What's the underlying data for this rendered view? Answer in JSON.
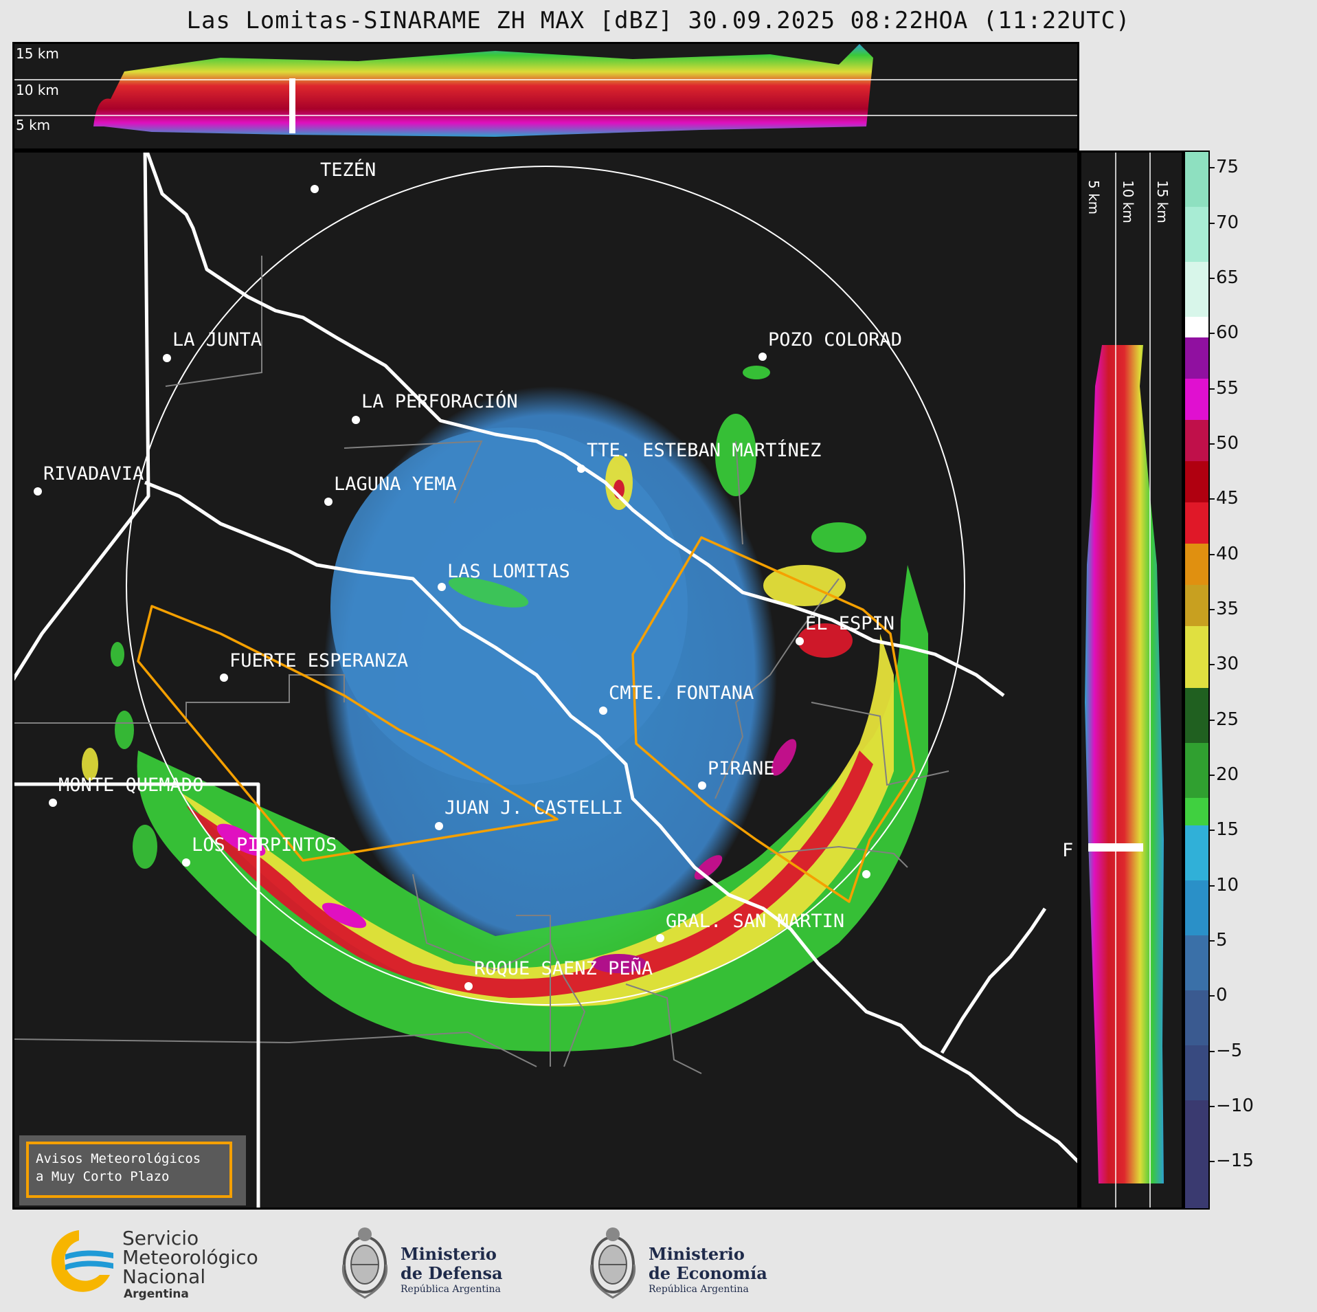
{
  "title": "Las Lomitas-SINARAME ZH MAX [dBZ] 30.09.2025 08:22HOA (11:22UTC)",
  "top_panel": {
    "height_labels": [
      "15 km",
      "10 km",
      "5 km"
    ]
  },
  "side_panel": {
    "height_labels": [
      "5 km",
      "10 km",
      "15 km"
    ]
  },
  "colorbar": {
    "ticks": [
      "75",
      "70",
      "65",
      "60",
      "55",
      "50",
      "45",
      "40",
      "35",
      "30",
      "25",
      "20",
      "15",
      "10",
      "5",
      "0",
      "−5",
      "−10",
      "−15"
    ]
  },
  "cities": [
    {
      "name": "TEZÉN"
    },
    {
      "name": "LA JUNTA"
    },
    {
      "name": "POZO COLORAD"
    },
    {
      "name": "LA PERFORACIÓN"
    },
    {
      "name": "TTE. ESTEBAN MARTÍNEZ"
    },
    {
      "name": "RIVADAVIA"
    },
    {
      "name": "LAGUNA YEMA"
    },
    {
      "name": "LAS LOMITAS"
    },
    {
      "name": "EL ESPIN"
    },
    {
      "name": "FUERTE ESPERANZA"
    },
    {
      "name": "CMTE. FONTANA"
    },
    {
      "name": "PIRANE"
    },
    {
      "name": "MONTE QUEMADO"
    },
    {
      "name": "JUAN J. CASTELLI"
    },
    {
      "name": "LOS PIRPINTOS"
    },
    {
      "name": "GRAL. SAN MARTIN"
    },
    {
      "name": "ROQUE SAENZ PEÑA"
    },
    {
      "name": "F"
    }
  ],
  "aviso": {
    "line1": "Avisos Meteorológicos",
    "line2": "a Muy Corto Plazo"
  },
  "logos": {
    "smn": {
      "line1": "Servicio",
      "line2": "Meteorológico",
      "line3": "Nacional",
      "line4": "Argentina"
    },
    "defensa": {
      "line1": "Ministerio",
      "line2": "de Defensa",
      "line3": "República Argentina"
    },
    "economia": {
      "line1": "Ministerio",
      "line2": "de Economía",
      "line3": "República Argentina"
    }
  },
  "colors": {
    "background": "#1a1a1a",
    "warning_polygon": "#f5a000",
    "border_lines": "#ffffff",
    "smn_blue": "#1f9ad6",
    "smn_yellow": "#f7b500"
  }
}
